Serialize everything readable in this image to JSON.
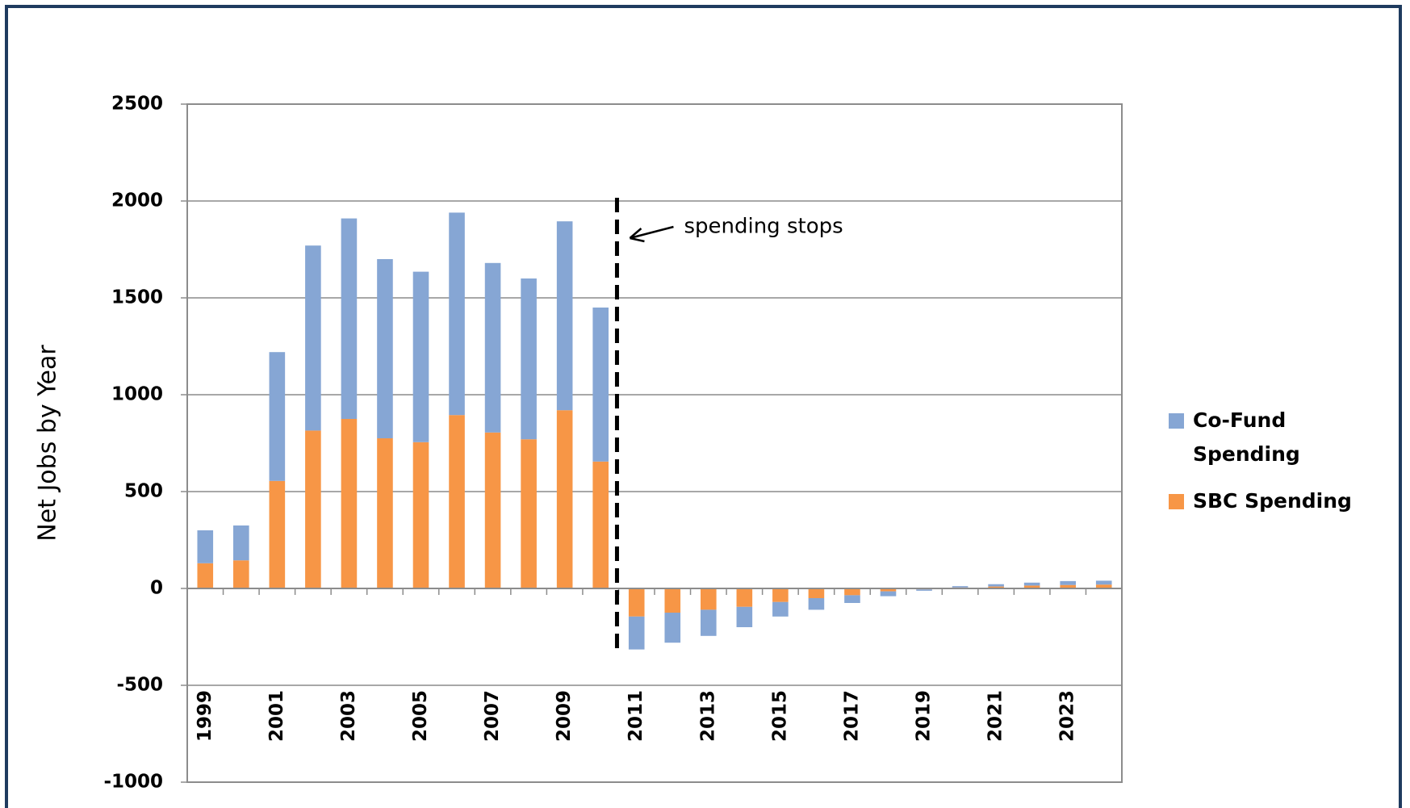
{
  "chart_data": {
    "type": "stacked_bar",
    "y_label": "Net Jobs by Year",
    "annotation": "spending stops",
    "categories": [
      "1999",
      null,
      "2001",
      null,
      "2003",
      null,
      "2005",
      null,
      "2007",
      null,
      "2009",
      null,
      "2011",
      null,
      "2013",
      null,
      "2015",
      null,
      "2017",
      null,
      "2019",
      null,
      "2021",
      null,
      "2023",
      null
    ],
    "series": [
      {
        "name": "SBC Spending",
        "color": "#f79646",
        "values": [
          130,
          145,
          555,
          815,
          875,
          775,
          755,
          895,
          805,
          770,
          920,
          655,
          -145,
          -125,
          -110,
          -95,
          -70,
          -50,
          -35,
          -15,
          -5,
          5,
          10,
          15,
          18,
          20
        ]
      },
      {
        "name": "Co-Fund Spending",
        "color": "#86a6d4",
        "values": [
          170,
          180,
          665,
          955,
          1035,
          925,
          880,
          1045,
          875,
          830,
          975,
          795,
          -170,
          -155,
          -135,
          -105,
          -75,
          -60,
          -40,
          -25,
          -7,
          7,
          12,
          15,
          20,
          20
        ]
      }
    ],
    "ylim": [
      -1000,
      2500
    ],
    "yticks": [
      -1000,
      -500,
      0,
      500,
      1000,
      1500,
      2000,
      2500
    ],
    "grid": true,
    "legend": "right"
  }
}
